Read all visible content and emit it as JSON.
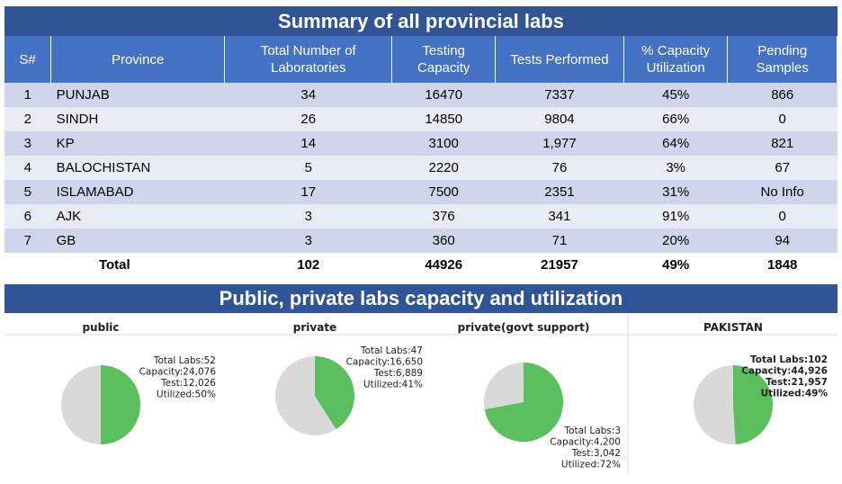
{
  "table": {
    "title": "Summary of all provincial labs",
    "headers": [
      "S#",
      "Province",
      "Total Number of Laboratories",
      "Testing Capacity",
      "Tests Performed",
      "% Capacity Utilization",
      "Pending Samples"
    ],
    "rows": [
      [
        "1",
        "PUNJAB",
        "34",
        "16470",
        "7337",
        "45%",
        "866"
      ],
      [
        "2",
        "SINDH",
        "26",
        "14850",
        "9804",
        "66%",
        "0"
      ],
      [
        "3",
        "KP",
        "14",
        "3100",
        "1,977",
        "64%",
        "821"
      ],
      [
        "4",
        "BALOCHISTAN",
        "5",
        "2220",
        "76",
        "3%",
        "67"
      ],
      [
        "5",
        "ISLAMABAD",
        "17",
        "7500",
        "2351",
        "31%",
        "No Info"
      ],
      [
        "6",
        "AJK",
        "3",
        "376",
        "341",
        "91%",
        "0"
      ],
      [
        "7",
        "GB",
        "3",
        "360",
        "71",
        "20%",
        "94"
      ]
    ],
    "total": [
      "Total",
      "102",
      "44926",
      "21957",
      "49%",
      "1848"
    ]
  },
  "section_title": "Public, private labs capacity and utilization",
  "pies": [
    {
      "title": "public",
      "lines": [
        "Total Labs:52",
        "Capacity:24,076",
        "Test:12,026",
        "Utilized:50%"
      ],
      "value": 50
    },
    {
      "title": "private",
      "lines": [
        "Total Labs:47",
        "Capacity:16,650",
        "Test:6,889",
        "Utilized:41%"
      ],
      "value": 41
    },
    {
      "title": "private(govt support)",
      "lines": [
        "Total Labs:3",
        "Capacity:4,200",
        "Test:3,042",
        "Utilized:72%"
      ],
      "value": 72
    },
    {
      "title": "PAKISTAN",
      "lines": [
        "Total Labs:102",
        "Capacity:44,926",
        "Test:21,957",
        "Utilized:49%"
      ],
      "value": 49
    }
  ]
}
